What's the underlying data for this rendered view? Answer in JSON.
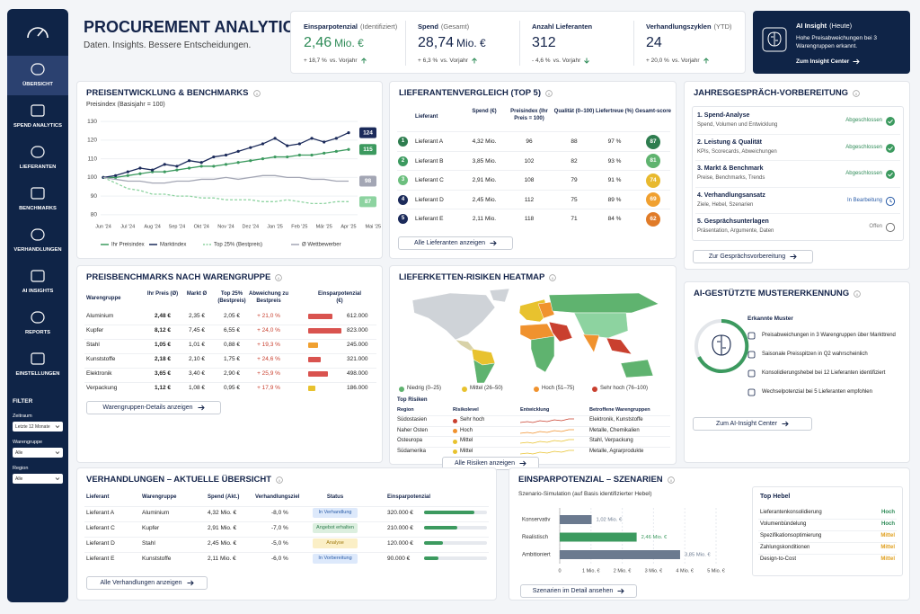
{
  "sidebar": {
    "nav": [
      "ÜBERSICHT",
      "SPEND ANALYTICS",
      "LIEFERANTEN",
      "BENCHMARKS",
      "VERHANDLUNGEN",
      "AI INSIGHTS",
      "REPORTS",
      "EINSTELLUNGEN"
    ],
    "filter": {
      "title": "FILTER",
      "fields": [
        {
          "label": "Zeitraum",
          "value": "Letzte 12 Monate"
        },
        {
          "label": "Warengruppe",
          "value": "Alle"
        },
        {
          "label": "Region",
          "value": "Alle"
        }
      ]
    }
  },
  "header": {
    "title": "PROCUREMENT ANALYTICS",
    "subtitle": "Daten. Insights. Bessere Entscheidungen."
  },
  "kpis": [
    {
      "label": "Einsparpotenzial",
      "note": "(Identifiziert)",
      "value": "2,46",
      "unit": "Mio. €",
      "change": "+ 18,7 %",
      "compare": "vs. Vorjahr",
      "trend": "up",
      "color": "#2e8b57"
    },
    {
      "label": "Spend",
      "note": "(Gesamt)",
      "value": "28,74",
      "unit": "Mio. €",
      "change": "+ 6,3 %",
      "compare": "vs. Vorjahr",
      "trend": "up",
      "color": "#14244a"
    },
    {
      "label": "Anzahl Lieferanten",
      "value": "312",
      "change": "- 4,6 %",
      "compare": "vs. Vorjahr",
      "trend": "down",
      "color": "#14244a"
    },
    {
      "label": "Verhandlungszyklen",
      "note": "(YTD)",
      "value": "24",
      "change": "+ 20,0 %",
      "compare": "vs. Vorjahr",
      "trend": "up",
      "color": "#14244a"
    }
  ],
  "ai_insight": {
    "title": "AI Insight",
    "note": "(Heute)",
    "text": "Hohe Preisabweichungen bei 3 Warengruppen erkannt.",
    "link": "Zum Insight Center"
  },
  "price_chart": {
    "type": "line",
    "title": "PREISENTWICKLUNG & BENCHMARKS",
    "ylabel": "Preisindex (Basisjahr = 100)",
    "categories": [
      "Jun '24",
      null,
      "Jul '24",
      null,
      "Aug '24",
      null,
      "Sep '24",
      null,
      "Okt '24",
      null,
      "Nov '24",
      null,
      "Dez '24",
      null,
      "Jan '25",
      null,
      "Feb '25",
      null,
      "Mär '25",
      null,
      "Apr '25",
      null,
      "Mai '25"
    ],
    "series": [
      {
        "name": "Ihr Preisindex",
        "color": "#3c9a5f",
        "markers": true,
        "values": [
          100,
          100,
          101,
          102,
          103,
          103,
          104,
          105,
          106,
          106,
          107,
          108,
          109,
          110,
          111,
          111,
          112,
          112,
          113,
          114,
          115,
          null,
          null
        ]
      },
      {
        "name": "Marktindex",
        "color": "#1b2a5a",
        "markers": true,
        "values": [
          100,
          101,
          103,
          105,
          104,
          107,
          106,
          109,
          108,
          111,
          112,
          114,
          116,
          118,
          121,
          117,
          118,
          121,
          119,
          121,
          124,
          null,
          null
        ]
      },
      {
        "name": "Top 25% (Bestpreis)",
        "color": "#8dd3a0",
        "dash": true,
        "values": [
          100,
          97,
          94,
          93,
          91,
          91,
          90,
          90,
          89,
          89,
          88,
          88,
          88,
          87,
          87,
          88,
          87,
          86,
          86,
          87,
          87,
          null,
          null
        ]
      },
      {
        "name": "Ø Wettbewerber",
        "color": "#a3a6b4",
        "values": [
          100,
          99,
          98,
          98,
          97,
          97,
          98,
          98,
          99,
          99,
          100,
          99,
          100,
          101,
          101,
          100,
          100,
          99,
          99,
          98,
          98,
          null,
          null
        ]
      }
    ],
    "ylim": [
      78,
      132
    ],
    "yticks": [
      80,
      90,
      100,
      110,
      120,
      130
    ],
    "grid": true
  },
  "supplier_table": {
    "title": "LIEFERANTENVERGLEICH (TOP 5)",
    "headers": [
      "Lieferant",
      "Spend (€)",
      "Preisindex (Ihr Preis = 100)",
      "Qualität (0–100)",
      "Liefertreue (%)",
      "Gesamt-score"
    ],
    "rows": [
      {
        "rank": 1,
        "rank_color": "#2e7d4f",
        "cells": [
          "Lieferant A",
          "4,32 Mio.",
          "96",
          "88",
          "97 %"
        ],
        "score": 87,
        "score_color": "#2e7d4f"
      },
      {
        "rank": 2,
        "rank_color": "#3c9a5f",
        "cells": [
          "Lieferant B",
          "3,85 Mio.",
          "102",
          "82",
          "93 %"
        ],
        "score": 81,
        "score_color": "#5fb36f"
      },
      {
        "rank": 3,
        "rank_color": "#6cbf7e",
        "cells": [
          "Lieferant C",
          "2,91 Mio.",
          "108",
          "79",
          "91 %"
        ],
        "score": 74,
        "score_color": "#e8b92e"
      },
      {
        "rank": 4,
        "rank_color": "#1b2a5a",
        "cells": [
          "Lieferant D",
          "2,45 Mio.",
          "112",
          "75",
          "89 %"
        ],
        "score": 69,
        "score_color": "#f0a030"
      },
      {
        "rank": 5,
        "rank_color": "#1b2a5a",
        "cells": [
          "Lieferant E",
          "2,11 Mio.",
          "118",
          "71",
          "84 %"
        ],
        "score": 62,
        "score_color": "#e07b28"
      }
    ],
    "button": "Alle Lieferanten anzeigen"
  },
  "preparation": {
    "title": "JAHRESGESPRÄCH-VORBEREITUNG",
    "steps": [
      {
        "title": "1. Spend-Analyse",
        "desc": "Spend, Volumen und Entwicklung",
        "status": "Abgeschlossen",
        "state": "done"
      },
      {
        "title": "2. Leistung & Qualität",
        "desc": "KPIs, Scorecards, Abweichungen",
        "status": "Abgeschlossen",
        "state": "done"
      },
      {
        "title": "3. Markt & Benchmark",
        "desc": "Preise, Benchmarks, Trends",
        "status": "Abgeschlossen",
        "state": "done"
      },
      {
        "title": "4. Verhandlungsansatz",
        "desc": "Ziele, Hebel, Szenarien",
        "status": "In Bearbeitung",
        "state": "progress"
      },
      {
        "title": "5. Gesprächsunterlagen",
        "desc": "Präsentation, Argumente, Daten",
        "status": "Offen",
        "state": "open"
      }
    ],
    "button": "Zur Gesprächsvorbereitung"
  },
  "benchmark_table": {
    "title": "PREISBENCHMARKS NACH WARENGRUPPE",
    "headers": [
      "Warengruppe",
      "Ihr Preis (Ø)",
      "Markt Ø",
      "Top 25% (Bestpreis)",
      "Abweichung zu Bestpreis",
      "Einsparpotenzial (€)"
    ],
    "rows": [
      {
        "cells": [
          "Aluminium",
          "2,48 €",
          "2,35 €",
          "2,05 €",
          "+ 21,0 %"
        ],
        "savings": 612000,
        "savings_label": "612.000",
        "color": "#d9534f"
      },
      {
        "cells": [
          "Kupfer",
          "8,12 €",
          "7,45 €",
          "6,55 €",
          "+ 24,0 %"
        ],
        "savings": 823000,
        "savings_label": "823.000",
        "color": "#d9534f"
      },
      {
        "cells": [
          "Stahl",
          "1,05 €",
          "1,01 €",
          "0,88 €",
          "+ 19,3 %"
        ],
        "savings": 245000,
        "savings_label": "245.000",
        "color": "#f0a030"
      },
      {
        "cells": [
          "Kunststoffe",
          "2,18 €",
          "2,10 €",
          "1,75 €",
          "+ 24,6 %"
        ],
        "savings": 321000,
        "savings_label": "321.000",
        "color": "#d9534f"
      },
      {
        "cells": [
          "Elektronik",
          "3,65 €",
          "3,40 €",
          "2,90 €",
          "+ 25,9 %"
        ],
        "savings": 498000,
        "savings_label": "498.000",
        "color": "#d9534f"
      },
      {
        "cells": [
          "Verpackung",
          "1,12 €",
          "1,08 €",
          "0,95 €",
          "+ 17,9 %"
        ],
        "savings": 186000,
        "savings_label": "186.000",
        "color": "#e8c22e"
      }
    ],
    "button": "Warengruppen-Details anzeigen"
  },
  "risk_map": {
    "title": "LIEFERKETTEN-RISIKEN HEATMAP",
    "legend": [
      {
        "label": "Niedrig (0–25)",
        "color": "#5fb36f"
      },
      {
        "label": "Mittel (26–50)",
        "color": "#e8c22e"
      },
      {
        "label": "Hoch (51–75)",
        "color": "#f0922e"
      },
      {
        "label": "Sehr hoch (76–100)",
        "color": "#c9402f"
      }
    ],
    "top_title": "Top Risiken",
    "headers": [
      "Region",
      "Risikolevel",
      "Entwicklung",
      "Betroffene Warengruppen"
    ],
    "rows": [
      {
        "region": "Südostasien",
        "level": "Sehr hoch",
        "color": "#c9402f",
        "groups": "Elektronik, Kunststoffe"
      },
      {
        "region": "Naher Osten",
        "level": "Hoch",
        "color": "#f0922e",
        "groups": "Metalle, Chemikalien"
      },
      {
        "region": "Osteuropa",
        "level": "Mittel",
        "color": "#e8c22e",
        "groups": "Stahl, Verpackung"
      },
      {
        "region": "Südamerika",
        "level": "Mittel",
        "color": "#e8c22e",
        "groups": "Metalle, Agrarprodukte"
      }
    ],
    "button": "Alle Risiken anzeigen"
  },
  "patterns": {
    "title": "AI-GESTÜTZTE MUSTERERKENNUNG",
    "subtitle": "Erkannte Muster",
    "items": [
      "Preisabweichungen in 3 Warengruppen über Markttrend",
      "Saisonale Preisspitzen in Q2 wahrscheinlich",
      "Konsolidierungshebel bei 12 Lieferanten identifiziert",
      "Wechselpotenzial bei 5 Lieferanten empfohlen"
    ],
    "button": "Zum AI-Insight Center"
  },
  "negotiations": {
    "title": "VERHANDLUNGEN – AKTUELLE ÜBERSICHT",
    "headers": [
      "Lieferant",
      "Warengruppe",
      "Spend (Akt.)",
      "Verhandlungsziel",
      "Status",
      "Einsparpotenzial"
    ],
    "rows": [
      {
        "cells": [
          "Lieferant A",
          "Aluminium",
          "4,32 Mio. €",
          "-8,0 %"
        ],
        "status": "In Verhandlung",
        "status_bg": "#dde9fb",
        "status_color": "#2b5da8",
        "savings": 320000,
        "savings_label": "320.000 €"
      },
      {
        "cells": [
          "Lieferant C",
          "Kupfer",
          "2,91 Mio. €",
          "-7,0 %"
        ],
        "status": "Angebot erhalten",
        "status_bg": "#dcefdf",
        "status_color": "#2e7d4f",
        "savings": 210000,
        "savings_label": "210.000 €"
      },
      {
        "cells": [
          "Lieferant D",
          "Stahl",
          "2,45 Mio. €",
          "-5,0 %"
        ],
        "status": "Analyse",
        "status_bg": "#fbefc6",
        "status_color": "#a07a10",
        "savings": 120000,
        "savings_label": "120.000 €"
      },
      {
        "cells": [
          "Lieferant E",
          "Kunststoffe",
          "2,11 Mio. €",
          "-6,0 %"
        ],
        "status": "In Vorbereitung",
        "status_bg": "#dde9fb",
        "status_color": "#2b5da8",
        "savings": 90000,
        "savings_label": "90.000 €"
      }
    ],
    "bar_color": "#3c9a5f",
    "button": "Alle Verhandlungen anzeigen"
  },
  "scenarios": {
    "type": "bar",
    "orientation": "horizontal",
    "title": "EINSPARPOTENZIAL – SZENARIEN",
    "subtitle": "Szenario-Simulation (auf Basis identifizierter Hebel)",
    "categories": [
      "Konservativ",
      "Realistisch",
      "Ambitioniert"
    ],
    "values": [
      1.02,
      2.46,
      3.85
    ],
    "value_labels": [
      "1,02 Mio. €",
      "2,46 Mio. €",
      "3,85 Mio. €"
    ],
    "colors": [
      "#6b7a8f",
      "#3c9a5f",
      "#6b7a8f"
    ],
    "xlim": [
      0,
      5
    ],
    "xticks": [
      0,
      {
        "value": 1,
        "label": "1 Mio. €"
      },
      {
        "value": 2,
        "label": "2 Mio. €"
      },
      {
        "value": 3,
        "label": "3 Mio. €"
      },
      {
        "value": 4,
        "label": "4 Mio. €"
      },
      {
        "value": 5,
        "label": "5 Mio. €"
      }
    ],
    "grid": true,
    "button": "Szenarien im Detail ansehen",
    "levers": {
      "title": "Top Hebel",
      "items": [
        {
          "name": "Lieferantenkonsolidierung",
          "rating": "Hoch",
          "color": "#2e8b57"
        },
        {
          "name": "Volumenbündelung",
          "rating": "Hoch",
          "color": "#2e8b57"
        },
        {
          "name": "Spezifikationsoptimierung",
          "rating": "Mittel",
          "color": "#e0a020"
        },
        {
          "name": "Zahlungskonditionen",
          "rating": "Mittel",
          "color": "#e0a020"
        },
        {
          "name": "Design-to-Cost",
          "rating": "Mittel",
          "color": "#e0a020"
        }
      ]
    }
  }
}
